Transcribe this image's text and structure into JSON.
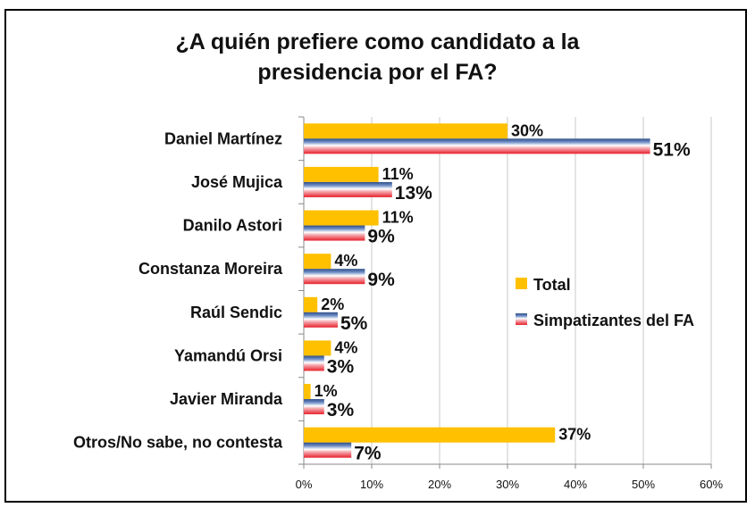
{
  "chart_data": {
    "type": "bar",
    "orientation": "horizontal",
    "title_lines": [
      "¿A quién prefiere como candidato a la",
      "presidencia por el FA?"
    ],
    "categories": [
      "Daniel Martínez",
      "José Mujica",
      "Danilo Astori",
      "Constanza Moreira",
      "Raúl Sendic",
      "Yamandú Orsi",
      "Javier Miranda",
      "Otros/No sabe, no contesta"
    ],
    "series": [
      {
        "name": "Total",
        "color": "#FFC000",
        "values": [
          30,
          11,
          11,
          4,
          2,
          4,
          1,
          37
        ],
        "labels": [
          "30%",
          "11%",
          "11%",
          "4%",
          "2%",
          "4%",
          "1%",
          "37%"
        ]
      },
      {
        "name": "Simpatizantes del FA",
        "color": "#4F6DA8",
        "values": [
          51,
          13,
          9,
          9,
          5,
          3,
          3,
          7
        ],
        "labels": [
          "51%",
          "13%",
          "9%",
          "9%",
          "5%",
          "3%",
          "3%",
          "7%"
        ]
      }
    ],
    "xlim": [
      0,
      60
    ],
    "xticks": [
      0,
      10,
      20,
      30,
      40,
      50,
      60
    ],
    "xtick_labels": [
      "0%",
      "10%",
      "20%",
      "30%",
      "40%",
      "50%",
      "60%"
    ],
    "grid": true,
    "legend": "right"
  }
}
